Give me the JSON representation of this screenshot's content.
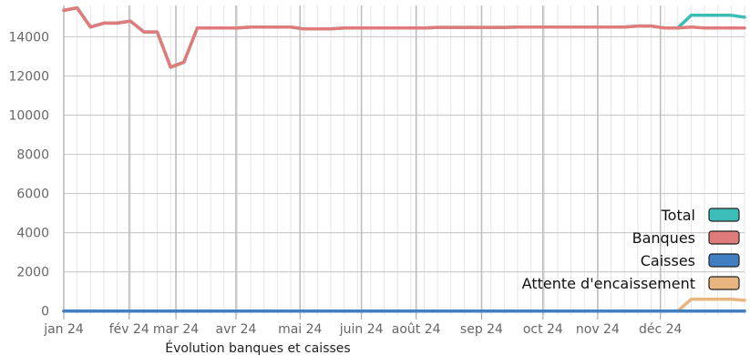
{
  "chart_data": {
    "type": "line",
    "xlabel": "Évolution banques et caisses",
    "ylabel": "",
    "ylim": [
      -200,
      15600
    ],
    "yticks": [
      0,
      2000,
      4000,
      6000,
      8000,
      10000,
      12000,
      14000
    ],
    "ytick_labels": [
      "0",
      "2000",
      "4000",
      "6000",
      "8000",
      "10000",
      "12000",
      "14000"
    ],
    "x_range_weeks": [
      0,
      51
    ],
    "x_major_labels": [
      "jan 24",
      "fév 24",
      "mar 24",
      "avr 24",
      "mai 24",
      "juin 24",
      "août 24",
      "sep 24",
      "oct 24",
      "nov 24",
      "déc 24"
    ],
    "x_major_positions": [
      0,
      4.9,
      8.4,
      12.9,
      17.7,
      22.3,
      26.4,
      31.3,
      35.9,
      40.0,
      44.7
    ],
    "grid": true,
    "legend_placement": "bottom-right",
    "x": [
      0,
      1,
      2,
      3,
      4,
      5,
      6,
      7,
      8,
      9,
      10,
      11,
      12,
      13,
      14,
      15,
      16,
      17,
      18,
      19,
      20,
      21,
      22,
      23,
      24,
      25,
      26,
      27,
      28,
      29,
      30,
      31,
      32,
      33,
      34,
      35,
      36,
      37,
      38,
      39,
      40,
      41,
      42,
      43,
      44,
      45,
      46,
      47,
      48,
      49,
      50,
      51
    ],
    "series": [
      {
        "name": "Total",
        "color": "#3dbdb8",
        "values": [
          15350,
          15480,
          14500,
          14700,
          14700,
          14800,
          14250,
          14250,
          12450,
          12700,
          14450,
          14450,
          14450,
          14450,
          14500,
          14500,
          14500,
          14500,
          14400,
          14400,
          14400,
          14450,
          14450,
          14450,
          14450,
          14450,
          14450,
          14450,
          14480,
          14480,
          14480,
          14480,
          14480,
          14480,
          14500,
          14500,
          14500,
          14500,
          14500,
          14500,
          14500,
          14500,
          14500,
          14550,
          14550,
          14450,
          14450,
          15100,
          15100,
          15100,
          15100,
          15000
        ]
      },
      {
        "name": "Banques",
        "color": "#e07b7b",
        "values": [
          15350,
          15480,
          14500,
          14700,
          14700,
          14800,
          14250,
          14250,
          12450,
          12700,
          14450,
          14450,
          14450,
          14450,
          14500,
          14500,
          14500,
          14500,
          14400,
          14400,
          14400,
          14450,
          14450,
          14450,
          14450,
          14450,
          14450,
          14450,
          14480,
          14480,
          14480,
          14480,
          14480,
          14480,
          14500,
          14500,
          14500,
          14500,
          14500,
          14500,
          14500,
          14500,
          14500,
          14550,
          14550,
          14450,
          14450,
          14500,
          14450,
          14450,
          14450,
          14450
        ]
      },
      {
        "name": "Caisses",
        "color": "#3f7fc2",
        "values": [
          0,
          0,
          0,
          0,
          0,
          0,
          0,
          0,
          0,
          0,
          0,
          0,
          0,
          0,
          0,
          0,
          0,
          0,
          0,
          0,
          0,
          0,
          0,
          0,
          0,
          0,
          0,
          0,
          0,
          0,
          0,
          0,
          0,
          0,
          0,
          0,
          0,
          0,
          0,
          0,
          0,
          0,
          0,
          0,
          0,
          0,
          0,
          0,
          0,
          0,
          0,
          0
        ]
      },
      {
        "name": "Attente d'encaissement",
        "color": "#e9b57e",
        "values": [
          0,
          0,
          0,
          0,
          0,
          0,
          0,
          0,
          0,
          0,
          0,
          0,
          0,
          0,
          0,
          0,
          0,
          0,
          0,
          0,
          0,
          0,
          0,
          0,
          0,
          0,
          0,
          0,
          0,
          0,
          0,
          0,
          0,
          0,
          0,
          0,
          0,
          0,
          0,
          0,
          0,
          0,
          0,
          0,
          0,
          0,
          0,
          600,
          600,
          600,
          600,
          550
        ]
      }
    ]
  }
}
